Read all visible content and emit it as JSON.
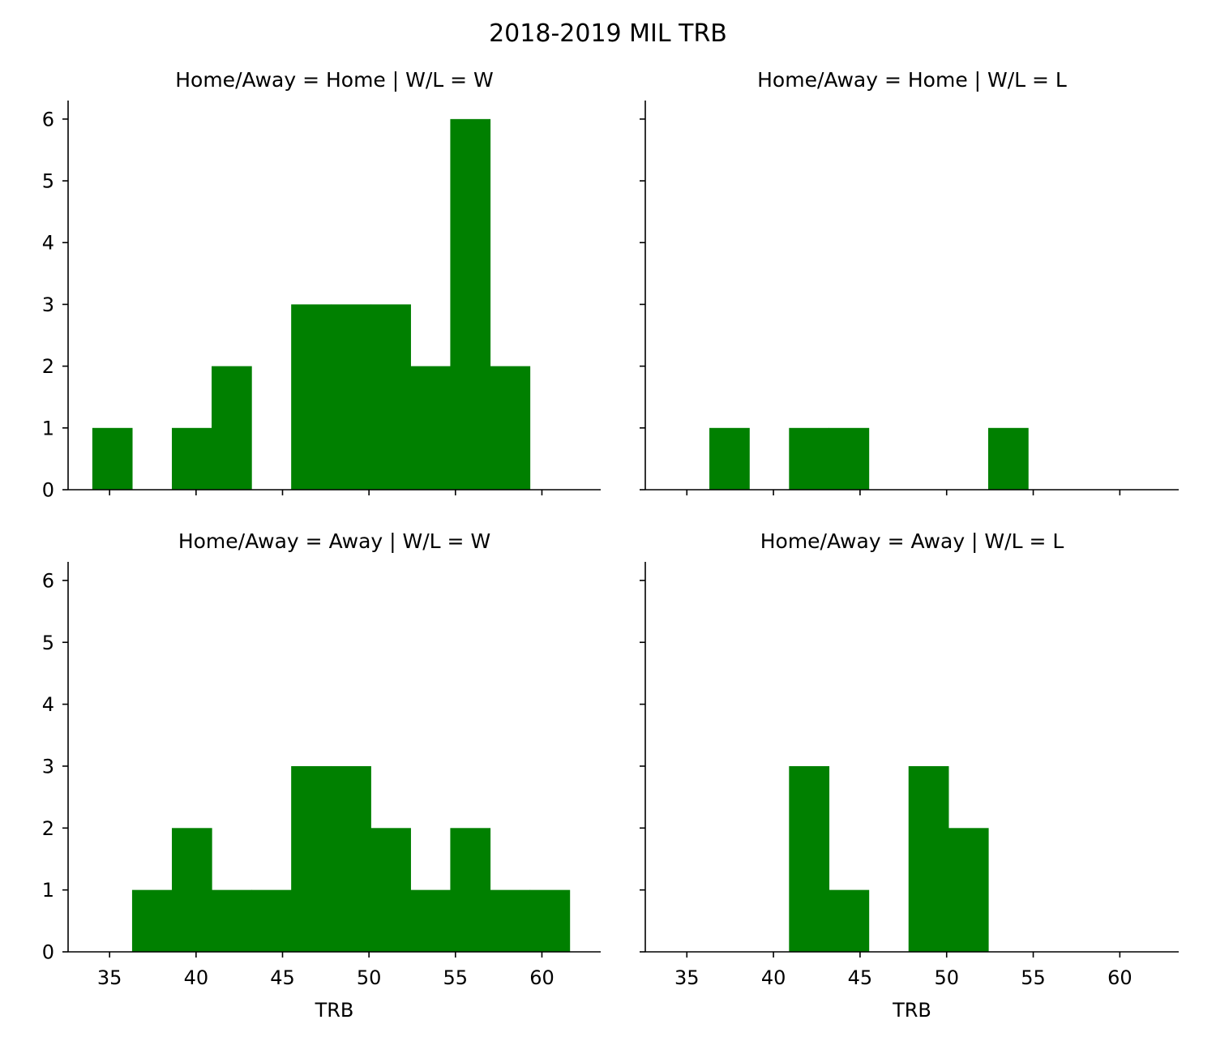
{
  "title": "2018-2019 MIL TRB",
  "bar_color": "#008000",
  "chart_data": [
    {
      "type": "bar",
      "panel_title": "Home/Away = Home | W/L = W",
      "home_away": "Home",
      "w_l": "W",
      "bin_edges": [
        34.0,
        36.3,
        38.6,
        40.9,
        43.2,
        45.5,
        47.8,
        50.1,
        52.4,
        54.7,
        57.0,
        59.3,
        61.6
      ],
      "values": [
        1,
        0,
        1,
        2,
        0,
        3,
        3,
        3,
        2,
        6,
        2,
        0
      ],
      "xlabel": "",
      "ylabel": "",
      "xlim": [
        32.6,
        63.4
      ],
      "ylim": [
        0,
        6.3
      ],
      "xticks": [
        35,
        40,
        45,
        50,
        55,
        60
      ],
      "yticks": [
        0,
        1,
        2,
        3,
        4,
        5,
        6
      ],
      "show_xtick_labels": false,
      "show_ytick_labels": true
    },
    {
      "type": "bar",
      "panel_title": "Home/Away = Home | W/L = L",
      "home_away": "Home",
      "w_l": "L",
      "bin_edges": [
        34.0,
        36.3,
        38.6,
        40.9,
        43.2,
        45.5,
        47.8,
        50.1,
        52.4,
        54.7,
        57.0,
        59.3,
        61.6
      ],
      "values": [
        0,
        1,
        0,
        1,
        1,
        0,
        0,
        0,
        1,
        0,
        0,
        0
      ],
      "xlabel": "",
      "ylabel": "",
      "xlim": [
        32.6,
        63.4
      ],
      "ylim": [
        0,
        6.3
      ],
      "xticks": [
        35,
        40,
        45,
        50,
        55,
        60
      ],
      "yticks": [
        0,
        1,
        2,
        3,
        4,
        5,
        6
      ],
      "show_xtick_labels": false,
      "show_ytick_labels": false
    },
    {
      "type": "bar",
      "panel_title": "Home/Away = Away | W/L = W",
      "home_away": "Away",
      "w_l": "W",
      "bin_edges": [
        34.0,
        36.3,
        38.6,
        40.9,
        43.2,
        45.5,
        47.8,
        50.1,
        52.4,
        54.7,
        57.0,
        59.3,
        61.6
      ],
      "values": [
        0,
        1,
        2,
        1,
        1,
        3,
        3,
        2,
        1,
        2,
        1,
        1
      ],
      "xlabel": "TRB",
      "ylabel": "",
      "xlim": [
        32.6,
        63.4
      ],
      "ylim": [
        0,
        6.3
      ],
      "xticks": [
        35,
        40,
        45,
        50,
        55,
        60
      ],
      "yticks": [
        0,
        1,
        2,
        3,
        4,
        5,
        6
      ],
      "show_xtick_labels": true,
      "show_ytick_labels": true
    },
    {
      "type": "bar",
      "panel_title": "Home/Away = Away | W/L = L",
      "home_away": "Away",
      "w_l": "L",
      "bin_edges": [
        34.0,
        36.3,
        38.6,
        40.9,
        43.2,
        45.5,
        47.8,
        50.1,
        52.4,
        54.7,
        57.0,
        59.3,
        61.6
      ],
      "values": [
        0,
        0,
        0,
        3,
        1,
        0,
        3,
        2,
        0,
        0,
        0,
        0
      ],
      "xlabel": "TRB",
      "ylabel": "",
      "xlim": [
        32.6,
        63.4
      ],
      "ylim": [
        0,
        6.3
      ],
      "xticks": [
        35,
        40,
        45,
        50,
        55,
        60
      ],
      "yticks": [
        0,
        1,
        2,
        3,
        4,
        5,
        6
      ],
      "show_xtick_labels": true,
      "show_ytick_labels": false
    }
  ]
}
